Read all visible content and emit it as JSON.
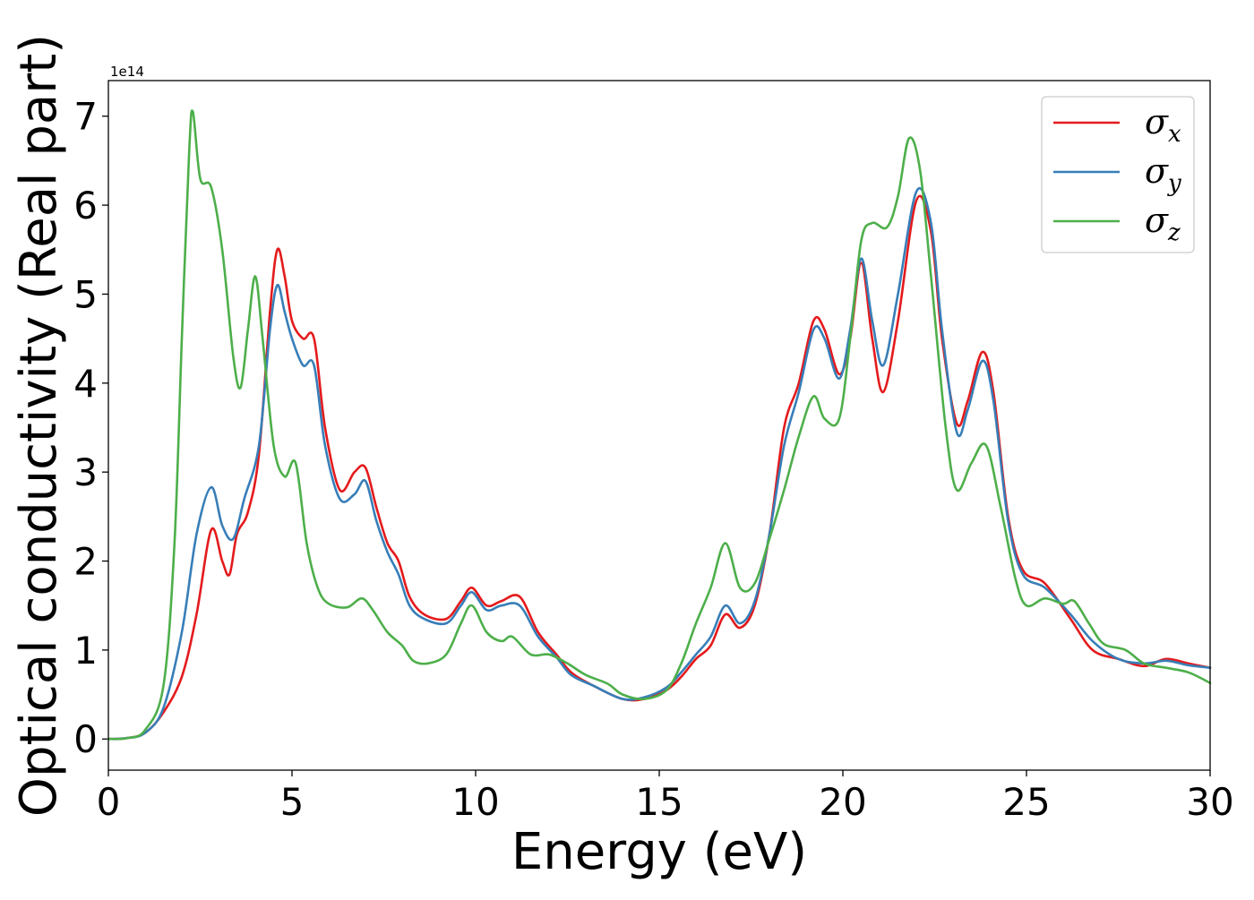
{
  "chart_data": {
    "type": "line",
    "title": "",
    "xlabel": "Energy (eV)",
    "ylabel": "Optical conductivity (Real part)",
    "y_offset_label": "1e14",
    "xlim": [
      0,
      30
    ],
    "ylim": [
      -0.35,
      7.4
    ],
    "x_ticks": [
      0,
      5,
      10,
      15,
      20,
      25,
      30
    ],
    "y_ticks": [
      0,
      1,
      2,
      3,
      4,
      5,
      6,
      7
    ],
    "grid": false,
    "legend_position": "top-right",
    "series": [
      {
        "name": "σx",
        "name_base": "σ",
        "name_sub": "x",
        "color": "#e41a1c",
        "points": [
          [
            0,
            0
          ],
          [
            0.5,
            0.01
          ],
          [
            1,
            0.07
          ],
          [
            1.5,
            0.3
          ],
          [
            2,
            0.7
          ],
          [
            2.4,
            1.4
          ],
          [
            2.8,
            2.35
          ],
          [
            3.1,
            2.0
          ],
          [
            3.3,
            1.85
          ],
          [
            3.5,
            2.3
          ],
          [
            3.8,
            2.55
          ],
          [
            4.1,
            3.2
          ],
          [
            4.4,
            4.8
          ],
          [
            4.6,
            5.5
          ],
          [
            4.8,
            5.2
          ],
          [
            5.0,
            4.7
          ],
          [
            5.3,
            4.5
          ],
          [
            5.6,
            4.5
          ],
          [
            5.9,
            3.5
          ],
          [
            6.3,
            2.8
          ],
          [
            6.7,
            3.0
          ],
          [
            7.0,
            3.05
          ],
          [
            7.3,
            2.6
          ],
          [
            7.6,
            2.2
          ],
          [
            7.9,
            2.0
          ],
          [
            8.2,
            1.6
          ],
          [
            8.6,
            1.4
          ],
          [
            9.2,
            1.35
          ],
          [
            9.6,
            1.55
          ],
          [
            9.9,
            1.7
          ],
          [
            10.3,
            1.5
          ],
          [
            10.7,
            1.55
          ],
          [
            11.2,
            1.6
          ],
          [
            11.7,
            1.2
          ],
          [
            12.2,
            0.95
          ],
          [
            12.6,
            0.75
          ],
          [
            13.2,
            0.6
          ],
          [
            14.0,
            0.45
          ],
          [
            14.6,
            0.45
          ],
          [
            15.2,
            0.55
          ],
          [
            15.6,
            0.7
          ],
          [
            16.0,
            0.9
          ],
          [
            16.4,
            1.05
          ],
          [
            16.8,
            1.4
          ],
          [
            17.2,
            1.25
          ],
          [
            17.6,
            1.5
          ],
          [
            18.0,
            2.3
          ],
          [
            18.4,
            3.5
          ],
          [
            18.8,
            4.0
          ],
          [
            19.2,
            4.7
          ],
          [
            19.5,
            4.6
          ],
          [
            19.9,
            4.1
          ],
          [
            20.2,
            4.5
          ],
          [
            20.5,
            5.35
          ],
          [
            20.8,
            4.5
          ],
          [
            21.1,
            3.9
          ],
          [
            21.5,
            4.7
          ],
          [
            22.0,
            6.05
          ],
          [
            22.4,
            5.7
          ],
          [
            22.7,
            4.5
          ],
          [
            23.1,
            3.55
          ],
          [
            23.4,
            3.8
          ],
          [
            23.8,
            4.35
          ],
          [
            24.1,
            3.9
          ],
          [
            24.5,
            2.5
          ],
          [
            24.9,
            1.9
          ],
          [
            25.5,
            1.75
          ],
          [
            26.2,
            1.35
          ],
          [
            26.8,
            1.0
          ],
          [
            27.5,
            0.9
          ],
          [
            28.2,
            0.82
          ],
          [
            28.8,
            0.9
          ],
          [
            29.4,
            0.85
          ],
          [
            30,
            0.8
          ]
        ]
      },
      {
        "name": "σy",
        "name_base": "σ",
        "name_sub": "y",
        "color": "#377eb8",
        "points": [
          [
            0,
            0
          ],
          [
            0.5,
            0.01
          ],
          [
            1,
            0.07
          ],
          [
            1.5,
            0.35
          ],
          [
            2,
            1.2
          ],
          [
            2.4,
            2.3
          ],
          [
            2.8,
            2.83
          ],
          [
            3.1,
            2.4
          ],
          [
            3.4,
            2.25
          ],
          [
            3.7,
            2.7
          ],
          [
            4.1,
            3.3
          ],
          [
            4.4,
            4.6
          ],
          [
            4.6,
            5.1
          ],
          [
            4.8,
            4.8
          ],
          [
            5.0,
            4.5
          ],
          [
            5.3,
            4.2
          ],
          [
            5.6,
            4.2
          ],
          [
            5.9,
            3.3
          ],
          [
            6.3,
            2.7
          ],
          [
            6.7,
            2.75
          ],
          [
            7.0,
            2.9
          ],
          [
            7.3,
            2.45
          ],
          [
            7.6,
            2.1
          ],
          [
            7.9,
            1.85
          ],
          [
            8.2,
            1.5
          ],
          [
            8.6,
            1.35
          ],
          [
            9.2,
            1.3
          ],
          [
            9.6,
            1.5
          ],
          [
            9.9,
            1.65
          ],
          [
            10.3,
            1.45
          ],
          [
            10.7,
            1.5
          ],
          [
            11.2,
            1.5
          ],
          [
            11.7,
            1.15
          ],
          [
            12.2,
            0.92
          ],
          [
            12.6,
            0.72
          ],
          [
            13.2,
            0.6
          ],
          [
            14.0,
            0.45
          ],
          [
            14.6,
            0.47
          ],
          [
            15.2,
            0.58
          ],
          [
            15.6,
            0.75
          ],
          [
            16.0,
            0.95
          ],
          [
            16.4,
            1.15
          ],
          [
            16.8,
            1.5
          ],
          [
            17.2,
            1.3
          ],
          [
            17.6,
            1.55
          ],
          [
            18.0,
            2.3
          ],
          [
            18.4,
            3.3
          ],
          [
            18.8,
            3.9
          ],
          [
            19.2,
            4.6
          ],
          [
            19.5,
            4.5
          ],
          [
            19.9,
            4.05
          ],
          [
            20.2,
            4.6
          ],
          [
            20.5,
            5.4
          ],
          [
            20.8,
            4.7
          ],
          [
            21.1,
            4.2
          ],
          [
            21.5,
            5.0
          ],
          [
            22.0,
            6.15
          ],
          [
            22.4,
            5.8
          ],
          [
            22.7,
            4.6
          ],
          [
            23.1,
            3.45
          ],
          [
            23.4,
            3.7
          ],
          [
            23.8,
            4.25
          ],
          [
            24.1,
            3.8
          ],
          [
            24.5,
            2.45
          ],
          [
            24.9,
            1.85
          ],
          [
            25.5,
            1.7
          ],
          [
            26.2,
            1.4
          ],
          [
            26.8,
            1.1
          ],
          [
            27.5,
            0.9
          ],
          [
            28.2,
            0.85
          ],
          [
            28.8,
            0.88
          ],
          [
            29.4,
            0.83
          ],
          [
            30,
            0.8
          ]
        ]
      },
      {
        "name": "σz",
        "name_base": "σ",
        "name_sub": "z",
        "color": "#4daf4a",
        "points": [
          [
            0,
            0
          ],
          [
            0.5,
            0.01
          ],
          [
            1,
            0.1
          ],
          [
            1.5,
            0.6
          ],
          [
            1.8,
            2.2
          ],
          [
            2.0,
            4.5
          ],
          [
            2.2,
            6.6
          ],
          [
            2.3,
            7.05
          ],
          [
            2.5,
            6.3
          ],
          [
            2.8,
            6.2
          ],
          [
            3.1,
            5.5
          ],
          [
            3.4,
            4.3
          ],
          [
            3.6,
            3.95
          ],
          [
            3.8,
            4.6
          ],
          [
            4.0,
            5.2
          ],
          [
            4.2,
            4.5
          ],
          [
            4.5,
            3.3
          ],
          [
            4.8,
            2.95
          ],
          [
            5.1,
            3.1
          ],
          [
            5.4,
            2.2
          ],
          [
            5.7,
            1.7
          ],
          [
            6.0,
            1.52
          ],
          [
            6.5,
            1.48
          ],
          [
            6.9,
            1.58
          ],
          [
            7.2,
            1.45
          ],
          [
            7.6,
            1.2
          ],
          [
            8.0,
            1.05
          ],
          [
            8.3,
            0.88
          ],
          [
            8.7,
            0.85
          ],
          [
            9.2,
            0.95
          ],
          [
            9.6,
            1.3
          ],
          [
            9.9,
            1.5
          ],
          [
            10.3,
            1.2
          ],
          [
            10.7,
            1.1
          ],
          [
            11.0,
            1.15
          ],
          [
            11.5,
            0.95
          ],
          [
            12.0,
            0.95
          ],
          [
            12.5,
            0.85
          ],
          [
            13.0,
            0.72
          ],
          [
            13.6,
            0.62
          ],
          [
            14.0,
            0.5
          ],
          [
            14.6,
            0.45
          ],
          [
            15.2,
            0.55
          ],
          [
            15.6,
            0.85
          ],
          [
            16.0,
            1.3
          ],
          [
            16.4,
            1.7
          ],
          [
            16.8,
            2.2
          ],
          [
            17.2,
            1.7
          ],
          [
            17.6,
            1.75
          ],
          [
            18.0,
            2.25
          ],
          [
            18.4,
            2.8
          ],
          [
            18.8,
            3.4
          ],
          [
            19.2,
            3.85
          ],
          [
            19.5,
            3.6
          ],
          [
            19.9,
            3.6
          ],
          [
            20.2,
            4.5
          ],
          [
            20.5,
            5.6
          ],
          [
            20.8,
            5.8
          ],
          [
            21.2,
            5.75
          ],
          [
            21.5,
            6.1
          ],
          [
            21.8,
            6.75
          ],
          [
            22.1,
            6.4
          ],
          [
            22.4,
            5.2
          ],
          [
            22.8,
            3.5
          ],
          [
            23.1,
            2.8
          ],
          [
            23.5,
            3.1
          ],
          [
            23.9,
            3.3
          ],
          [
            24.3,
            2.6
          ],
          [
            24.7,
            1.8
          ],
          [
            25.0,
            1.5
          ],
          [
            25.5,
            1.58
          ],
          [
            26.0,
            1.52
          ],
          [
            26.3,
            1.55
          ],
          [
            26.7,
            1.3
          ],
          [
            27.1,
            1.07
          ],
          [
            27.7,
            1.0
          ],
          [
            28.2,
            0.85
          ],
          [
            28.8,
            0.8
          ],
          [
            29.4,
            0.75
          ],
          [
            30,
            0.63
          ]
        ]
      }
    ]
  }
}
